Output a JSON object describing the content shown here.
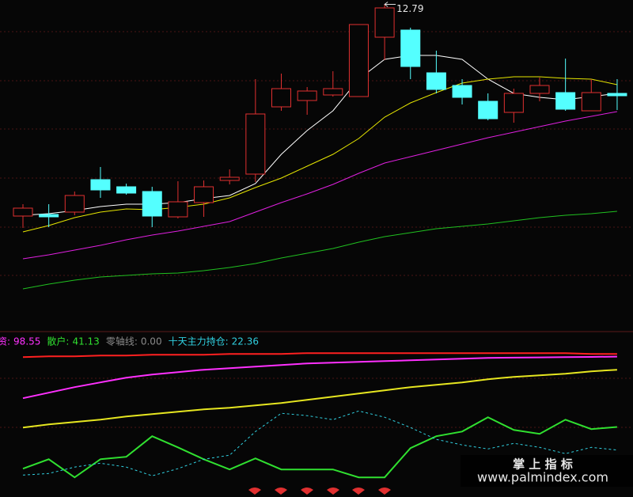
{
  "chart_data": [
    {
      "type": "candlestick",
      "ylim": [
        4.68,
        12.9
      ],
      "up_color": "#e03030",
      "down_color": "#54ffff",
      "candles": {
        "open": [
          7.44,
          7.48,
          7.54,
          8.36,
          8.18,
          8.06,
          7.42,
          7.78,
          8.34,
          8.5,
          10.2,
          10.36,
          10.5,
          10.46,
          11.96,
          12.14,
          11.06,
          10.74,
          10.34,
          10.06,
          10.54,
          10.56,
          10.1,
          10.54
        ],
        "high": [
          7.74,
          7.74,
          8.06,
          8.68,
          8.26,
          8.18,
          8.32,
          8.34,
          8.62,
          10.9,
          11.04,
          10.7,
          11.1,
          12.28,
          12.79,
          12.2,
          11.62,
          10.9,
          10.54,
          10.66,
          10.94,
          11.42,
          10.9,
          10.9
        ],
        "low": [
          7.14,
          7.16,
          7.46,
          7.9,
          7.98,
          7.16,
          7.38,
          7.42,
          8.24,
          8.3,
          10.1,
          10.0,
          10.46,
          10.46,
          11.38,
          10.9,
          10.54,
          10.26,
          9.86,
          9.8,
          10.34,
          10.1,
          10.1,
          10.12
        ],
        "close": [
          7.64,
          7.42,
          7.96,
          8.1,
          8.02,
          7.44,
          7.8,
          8.18,
          8.42,
          10.02,
          10.66,
          10.6,
          10.66,
          12.28,
          12.7,
          11.22,
          10.64,
          10.44,
          9.9,
          10.54,
          10.74,
          10.14,
          10.56,
          10.48
        ]
      },
      "high_label_index": 14,
      "overlays": [
        {
          "color": "#ffffff",
          "values": [
            7.46,
            7.5,
            7.58,
            7.68,
            7.74,
            7.74,
            7.78,
            7.88,
            7.96,
            8.26,
            9.0,
            9.6,
            10.1,
            10.9,
            11.4,
            11.5,
            11.5,
            11.4,
            10.9,
            10.54,
            10.44,
            10.38,
            10.46,
            10.54
          ]
        },
        {
          "color": "#e6e600",
          "values": [
            7.04,
            7.2,
            7.4,
            7.54,
            7.62,
            7.6,
            7.66,
            7.74,
            7.9,
            8.16,
            8.4,
            8.7,
            9.0,
            9.4,
            9.94,
            10.3,
            10.56,
            10.8,
            10.9,
            10.96,
            10.96,
            10.92,
            10.9,
            10.76
          ]
        },
        {
          "color": "#e020e0",
          "values": [
            6.36,
            6.46,
            6.58,
            6.7,
            6.84,
            6.96,
            7.06,
            7.18,
            7.3,
            7.54,
            7.78,
            8.0,
            8.24,
            8.52,
            8.78,
            8.94,
            9.1,
            9.26,
            9.42,
            9.56,
            9.7,
            9.84,
            9.96,
            10.08
          ]
        },
        {
          "color": "#20c020",
          "values": [
            5.6,
            5.72,
            5.82,
            5.9,
            5.94,
            5.98,
            6.0,
            6.06,
            6.14,
            6.24,
            6.38,
            6.5,
            6.62,
            6.78,
            6.92,
            7.02,
            7.12,
            7.18,
            7.24,
            7.32,
            7.4,
            7.46,
            7.5,
            7.56
          ]
        }
      ]
    },
    {
      "type": "line",
      "ylim": [
        -16,
        117
      ],
      "lines": [
        {
          "color": "#ff2020",
          "values": [
            98.1,
            98.8,
            98.8,
            99.4,
            99.4,
            100.1,
            100.1,
            100.1,
            100.7,
            100.7,
            100.7,
            101.4,
            101.4,
            101.4,
            101.4,
            101.4,
            101.4,
            101.4,
            101.4,
            101.4,
            101.4,
            101.4,
            100.7,
            100.7
          ]
        },
        {
          "color": "#e6e620",
          "values": [
            40.7,
            43.3,
            45.2,
            47.1,
            49.7,
            51.6,
            53.6,
            55.5,
            56.8,
            58.7,
            60.7,
            63.3,
            65.8,
            68.4,
            71.0,
            73.6,
            75.5,
            77.5,
            80.1,
            82.0,
            83.3,
            84.6,
            86.5,
            87.8
          ]
        }
      ],
      "series": [
        {
          "name": "资:",
          "color": "#ff30ff",
          "values": [
            64.6,
            69.1,
            73.6,
            77.5,
            81.3,
            83.9,
            85.9,
            87.8,
            89.1,
            90.4,
            91.7,
            93.0,
            93.6,
            94.3,
            94.9,
            95.5,
            96.2,
            96.8,
            97.5,
            97.7,
            97.9,
            98.1,
            98.3,
            98.55
          ]
        },
        {
          "name": "散户:",
          "color": "#30e030",
          "values": [
            7.1,
            14.8,
            0,
            14.8,
            16.8,
            33.6,
            24.5,
            14.8,
            6.5,
            15.5,
            6.5,
            6.5,
            6.5,
            0,
            0,
            23.9,
            33.6,
            37.4,
            49.1,
            38.7,
            35.5,
            47.1,
            39.4,
            41.13
          ]
        },
        {
          "name": "零轴线:",
          "color": "#8a8a8a",
          "values": [
            0,
            0,
            0,
            0,
            0,
            0,
            0,
            0,
            0,
            0,
            0,
            0,
            0,
            0,
            0,
            0,
            0,
            0,
            0,
            0,
            0,
            0,
            0,
            0
          ],
          "value_labels": {
            "23": "0.00"
          }
        },
        {
          "name": "十天主力持仓:",
          "color": "#30d0e0",
          "dashed": true,
          "values": [
            1.9,
            3.2,
            8.4,
            11.6,
            8.4,
            1.3,
            7.1,
            14.8,
            18.1,
            37.4,
            52.3,
            50.4,
            47.1,
            54.2,
            49.1,
            40.7,
            31.0,
            26.5,
            23.2,
            27.8,
            24.5,
            19.4,
            24.5,
            22.36
          ]
        }
      ]
    }
  ],
  "watermark": {
    "title": "掌 上 指 标",
    "url": "www.palmindex.com"
  }
}
